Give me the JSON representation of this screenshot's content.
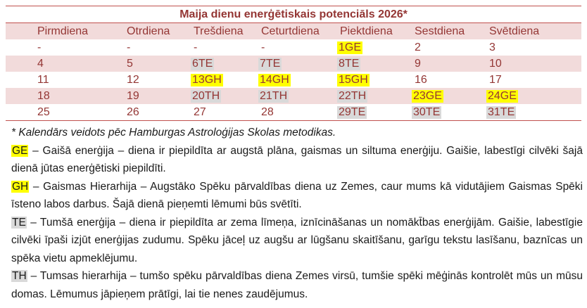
{
  "calendar": {
    "title": "Maija dienu enerģētiskais potenciāls 2026*",
    "days": [
      "Pirmdiena",
      "Otrdiena",
      "Trešdiena",
      "Ceturtdiena",
      "Piektdiena",
      "Sestdiena",
      "Svētdiena"
    ],
    "weeks": [
      [
        "-",
        "-",
        "-",
        "-",
        "1GE",
        "2",
        "3"
      ],
      [
        "4",
        "5",
        "6TE",
        "7TE",
        "8TE",
        "9",
        "10"
      ],
      [
        "11",
        "12",
        "13GH",
        "14GH",
        "15GH",
        "16",
        "17"
      ],
      [
        "18",
        "19",
        "20TH",
        "21TH",
        "22TH",
        "23GE",
        "24GE"
      ],
      [
        "25",
        "26",
        "27",
        "28",
        "29TE",
        "30TE",
        "31TE"
      ]
    ],
    "colors": {
      "title": "#943634",
      "band": "#f2dbdb",
      "rule": "#c0504d",
      "light": "#ffff00",
      "dark": "#d9d9d9"
    }
  },
  "footnote": "* Kalendārs veidots pēc Hamburgas Astroloģijas Skolas metodikas.",
  "definitions": [
    {
      "abbr": "GE",
      "text": " – Gaišā enerģija – diena ir piepildīta ar augstā plāna, gaismas un siltuma enerģiju. Gaišie, labestīgi cilvēki šajā dienā jūtas enerģētiski piepildīti."
    },
    {
      "abbr": "GH",
      "text": " – Gaismas Hierarhija – Augstāko Spēku pārvaldības diena uz Zemes, caur mums kā vidutājiem Gaismas Spēki īsteno labos darbus. Šajā dienā pieņemti lēmumi būs svētīti."
    },
    {
      "abbr": "TE",
      "text": " – Tumšā enerģija – diena ir piepildīta ar zema līmeņa, iznīcināšanas un nomākt̄bas enerģijām. Gaišie, labestīgie cilvēki īpaši izjūt enerģijas zudumu. Spēku jāceļ uz augšu ar lūgšanu skaitīšanu, garīgu tekstu lasīšanu, baznīcas un spēka vietu apmeklējumu."
    },
    {
      "abbr": "TH",
      "text": " – Tumsas hierarhija – tumšo spēku pārvaldības diena Zemes virsū, tumšie spēki mēģinās kontrolēt mūs un mūsu domas.  Lēmumus jāpieņem prātīgi, lai tie nenes zaudējumus."
    }
  ]
}
